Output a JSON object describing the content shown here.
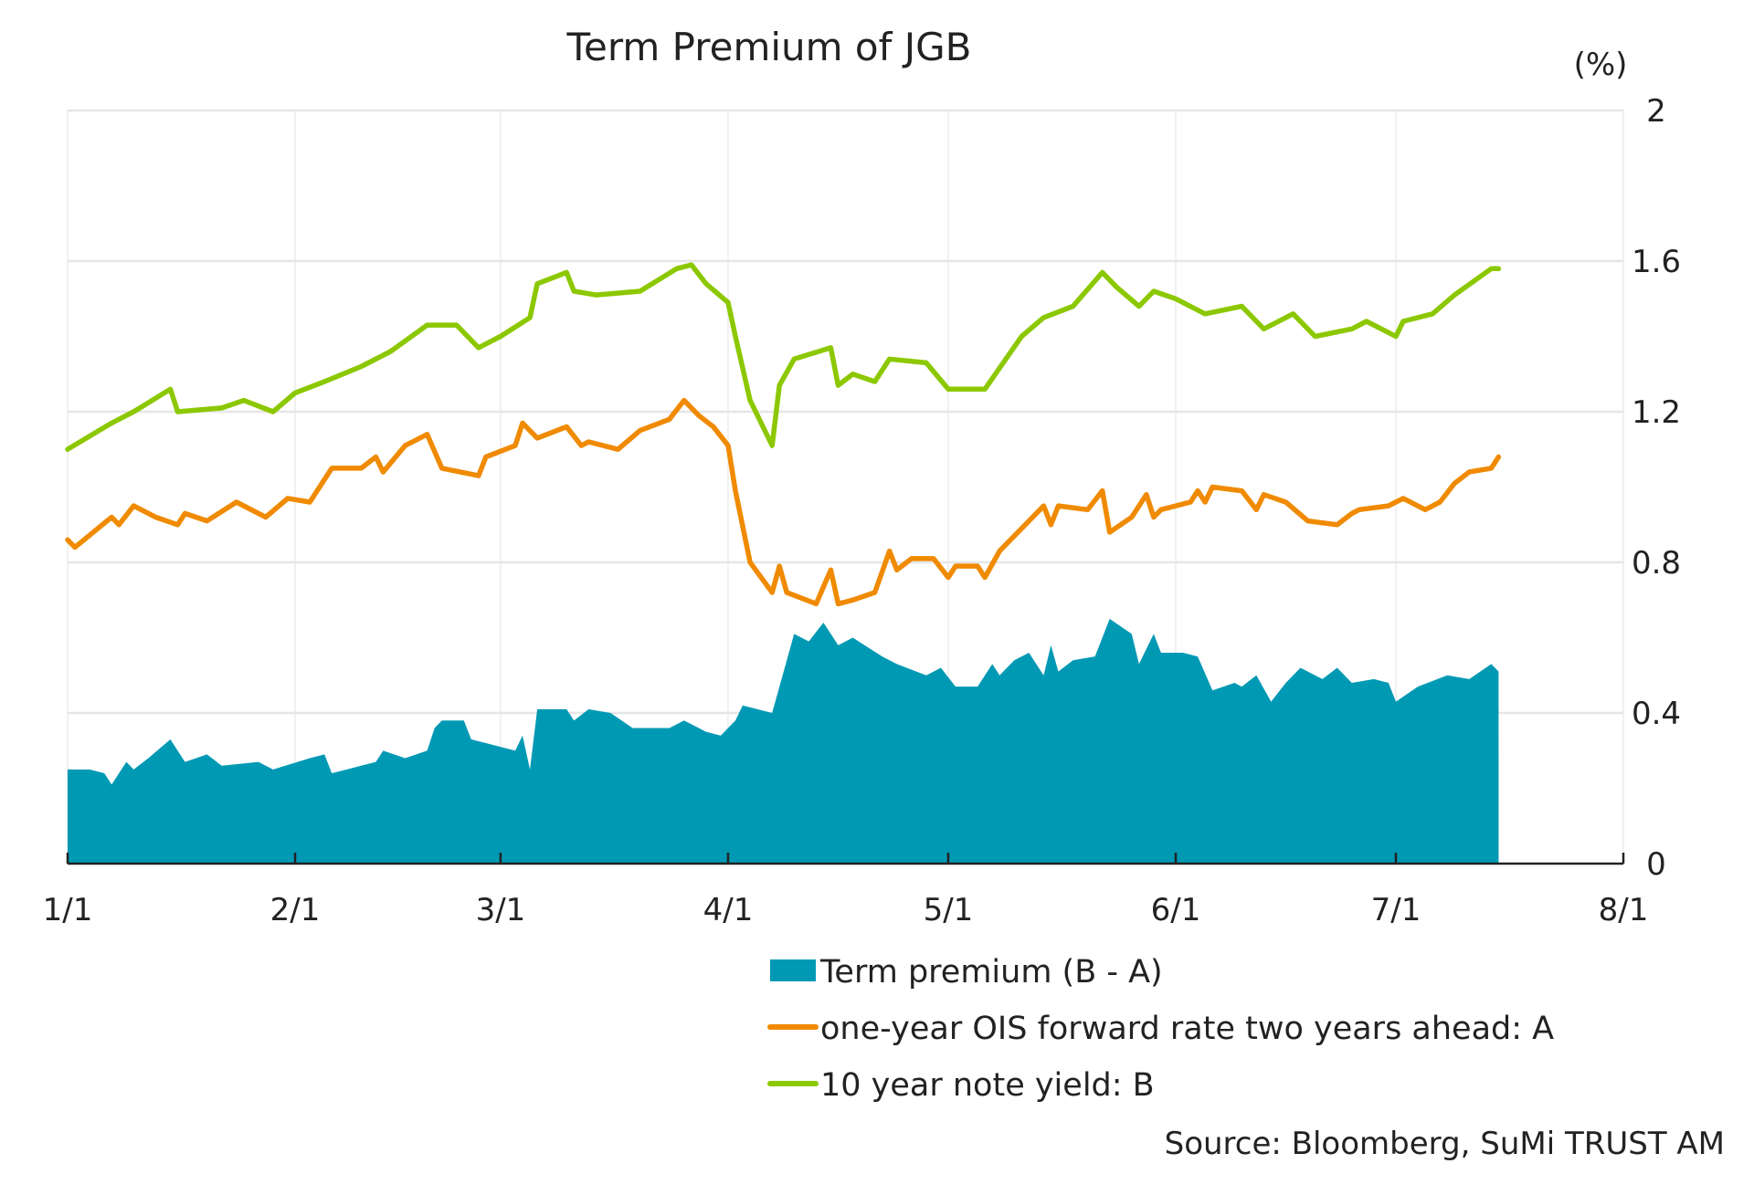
{
  "chart_data": {
    "type": "line",
    "title": "Term Premium of JGB",
    "ylabel": "(%)",
    "xlabel": "",
    "ylim": [
      0,
      2
    ],
    "yticks": [
      "0",
      "0.4",
      "0.8",
      "1.2",
      "1.6",
      "2"
    ],
    "xlim": [
      "1/1",
      "8/1"
    ],
    "xticks": [
      "1/1",
      "2/1",
      "3/1",
      "4/1",
      "5/1",
      "6/1",
      "7/1",
      "8/1"
    ],
    "grid": true,
    "y_axis_side": "right",
    "legend_placement": "bottom",
    "source": "Source: Bloomberg, SuMi TRUST AM",
    "series": [
      {
        "name": "Term premium (B - A)",
        "kind": "area",
        "color": "#0099B4",
        "x": [
          "1/1",
          "1/4",
          "1/6",
          "1/7",
          "1/9",
          "1/10",
          "1/12",
          "1/15",
          "1/17",
          "1/20",
          "1/22",
          "1/27",
          "1/29",
          "2/3",
          "2/5",
          "2/6",
          "2/10",
          "2/12",
          "2/13",
          "2/16",
          "2/19",
          "2/20",
          "2/21",
          "2/24",
          "2/25",
          "3/1",
          "3/3",
          "3/4",
          "3/5",
          "3/6",
          "3/10",
          "3/11",
          "3/13",
          "3/16",
          "3/19",
          "3/24",
          "3/26",
          "3/29",
          "3/31",
          "4/2",
          "4/3",
          "4/7",
          "4/10",
          "4/12",
          "4/14",
          "4/16",
          "4/18",
          "4/22",
          "4/24",
          "4/28",
          "4/30",
          "5/2",
          "5/5",
          "5/7",
          "5/8",
          "5/10",
          "5/12",
          "5/14",
          "5/15",
          "5/16",
          "5/18",
          "5/21",
          "5/23",
          "5/26",
          "5/27",
          "5/29",
          "5/30",
          "6/2",
          "6/4",
          "6/6",
          "6/9",
          "6/10",
          "6/12",
          "6/14",
          "6/16",
          "6/18",
          "6/21",
          "6/23",
          "6/25",
          "6/28",
          "6/30",
          "7/1",
          "7/4",
          "7/8",
          "7/11",
          "7/14",
          "7/15"
        ],
        "values": [
          0.25,
          0.25,
          0.24,
          0.21,
          0.27,
          0.25,
          0.28,
          0.33,
          0.27,
          0.29,
          0.26,
          0.27,
          0.25,
          0.28,
          0.29,
          0.24,
          0.26,
          0.27,
          0.3,
          0.28,
          0.3,
          0.36,
          0.38,
          0.38,
          0.33,
          0.31,
          0.3,
          0.34,
          0.25,
          0.41,
          0.41,
          0.38,
          0.41,
          0.4,
          0.36,
          0.36,
          0.38,
          0.35,
          0.34,
          0.38,
          0.42,
          0.4,
          0.61,
          0.59,
          0.64,
          0.58,
          0.6,
          0.55,
          0.53,
          0.5,
          0.52,
          0.47,
          0.47,
          0.53,
          0.5,
          0.54,
          0.56,
          0.5,
          0.58,
          0.51,
          0.54,
          0.55,
          0.65,
          0.61,
          0.53,
          0.61,
          0.56,
          0.56,
          0.55,
          0.46,
          0.48,
          0.47,
          0.5,
          0.43,
          0.48,
          0.52,
          0.49,
          0.52,
          0.48,
          0.49,
          0.48,
          0.43,
          0.47,
          0.5,
          0.49,
          0.53,
          0.51
        ]
      },
      {
        "name": "one-year OIS forward rate two years ahead: A",
        "kind": "line",
        "color": "#F08A00",
        "x": [
          "1/1",
          "1/2",
          "1/7",
          "1/8",
          "1/10",
          "1/13",
          "1/16",
          "1/17",
          "1/20",
          "1/24",
          "1/28",
          "1/31",
          "2/3",
          "2/6",
          "2/10",
          "2/12",
          "2/13",
          "2/16",
          "2/19",
          "2/21",
          "2/26",
          "2/27",
          "3/3",
          "3/4",
          "3/6",
          "3/10",
          "3/12",
          "3/13",
          "3/17",
          "3/20",
          "3/24",
          "3/26",
          "3/28",
          "3/30",
          "4/1",
          "4/2",
          "4/4",
          "4/7",
          "4/8",
          "4/9",
          "4/13",
          "4/15",
          "4/16",
          "4/18",
          "4/21",
          "4/23",
          "4/24",
          "4/26",
          "4/29",
          "5/1",
          "5/2",
          "5/5",
          "5/6",
          "5/8",
          "5/10",
          "5/13",
          "5/14",
          "5/15",
          "5/16",
          "5/20",
          "5/22",
          "5/23",
          "5/26",
          "5/28",
          "5/29",
          "5/30",
          "6/3",
          "6/4",
          "6/5",
          "6/6",
          "6/10",
          "6/12",
          "6/13",
          "6/16",
          "6/19",
          "6/23",
          "6/25",
          "6/26",
          "6/30",
          "7/2",
          "7/5",
          "7/7",
          "7/9",
          "7/11",
          "7/14",
          "7/15"
        ],
        "values": [
          0.86,
          0.84,
          0.92,
          0.9,
          0.95,
          0.92,
          0.9,
          0.93,
          0.91,
          0.96,
          0.92,
          0.97,
          0.96,
          1.05,
          1.05,
          1.08,
          1.04,
          1.11,
          1.14,
          1.05,
          1.03,
          1.08,
          1.11,
          1.17,
          1.13,
          1.16,
          1.11,
          1.12,
          1.1,
          1.15,
          1.18,
          1.23,
          1.19,
          1.16,
          1.11,
          0.99,
          0.8,
          0.72,
          0.79,
          0.72,
          0.69,
          0.78,
          0.69,
          0.7,
          0.72,
          0.83,
          0.78,
          0.81,
          0.81,
          0.76,
          0.79,
          0.79,
          0.76,
          0.83,
          0.87,
          0.93,
          0.95,
          0.9,
          0.95,
          0.94,
          0.99,
          0.88,
          0.92,
          0.98,
          0.92,
          0.94,
          0.96,
          0.99,
          0.96,
          1.0,
          0.99,
          0.94,
          0.98,
          0.96,
          0.91,
          0.9,
          0.93,
          0.94,
          0.95,
          0.97,
          0.94,
          0.96,
          1.01,
          1.04,
          1.05,
          1.08
        ]
      },
      {
        "name": "10 year note yield: B",
        "kind": "line",
        "color": "#8CC800",
        "x": [
          "1/1",
          "1/7",
          "1/10",
          "1/15",
          "1/16",
          "1/22",
          "1/25",
          "1/29",
          "2/1",
          "2/5",
          "2/10",
          "2/14",
          "2/19",
          "2/23",
          "2/26",
          "3/1",
          "3/5",
          "3/6",
          "3/10",
          "3/11",
          "3/14",
          "3/20",
          "3/25",
          "3/27",
          "3/29",
          "4/1",
          "4/2",
          "4/4",
          "4/7",
          "4/8",
          "4/10",
          "4/15",
          "4/16",
          "4/18",
          "4/21",
          "4/23",
          "4/28",
          "5/1",
          "5/6",
          "5/11",
          "5/14",
          "5/18",
          "5/22",
          "5/24",
          "5/27",
          "5/29",
          "6/1",
          "6/5",
          "6/10",
          "6/13",
          "6/17",
          "6/20",
          "6/25",
          "6/27",
          "7/1",
          "7/2",
          "7/6",
          "7/9",
          "7/14",
          "7/15"
        ],
        "values": [
          1.1,
          1.17,
          1.2,
          1.26,
          1.2,
          1.21,
          1.23,
          1.2,
          1.25,
          1.28,
          1.32,
          1.36,
          1.43,
          1.43,
          1.37,
          1.4,
          1.45,
          1.54,
          1.57,
          1.52,
          1.51,
          1.52,
          1.58,
          1.59,
          1.54,
          1.49,
          1.4,
          1.23,
          1.11,
          1.27,
          1.34,
          1.37,
          1.27,
          1.3,
          1.28,
          1.34,
          1.33,
          1.26,
          1.26,
          1.4,
          1.45,
          1.48,
          1.57,
          1.53,
          1.48,
          1.52,
          1.5,
          1.46,
          1.48,
          1.42,
          1.46,
          1.4,
          1.42,
          1.44,
          1.4,
          1.44,
          1.46,
          1.51,
          1.58,
          1.58
        ]
      }
    ]
  }
}
